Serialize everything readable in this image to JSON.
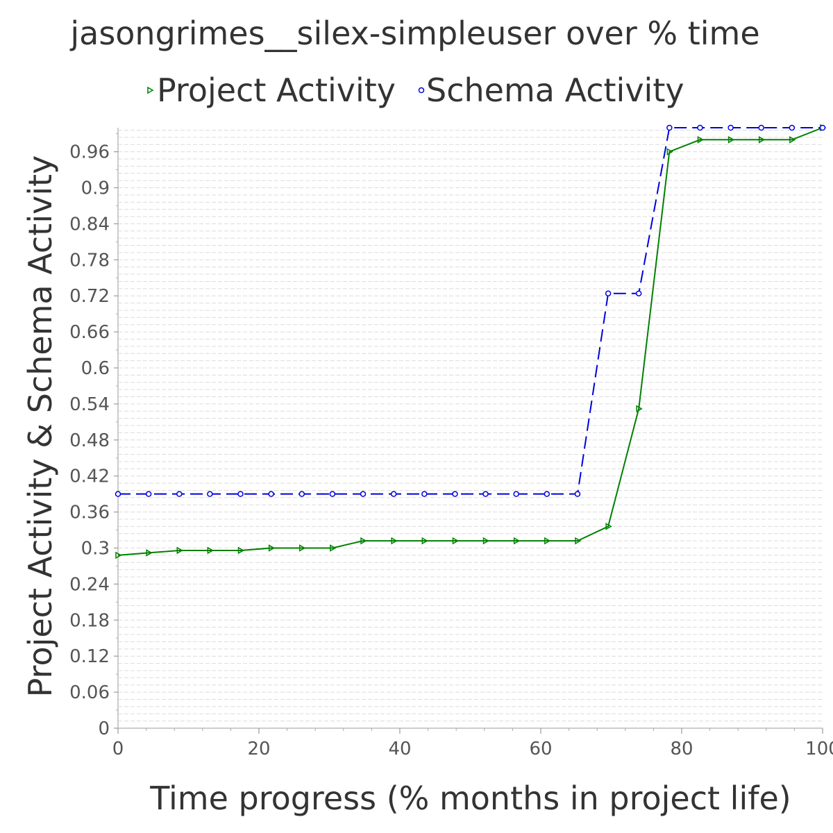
{
  "chart_data": {
    "type": "line",
    "title": "jasongrimes__silex-simpleuser over % time",
    "xlabel": "Time progress (% months in project life)",
    "ylabel": "Project Activity & Schema Activity",
    "xlim": [
      0,
      100
    ],
    "ylim": [
      0,
      1.0
    ],
    "xticks": [
      "0",
      "20",
      "40",
      "60",
      "80",
      "100"
    ],
    "yticks": [
      "0",
      "0.06",
      "0.12",
      "0.18",
      "0.24",
      "0.3",
      "0.36",
      "0.42",
      "0.48",
      "0.54",
      "0.6",
      "0.66",
      "0.72",
      "0.78",
      "0.84",
      "0.9",
      "0.96"
    ],
    "legend_position": "top",
    "grid": true,
    "series": [
      {
        "name": "Project Activity",
        "color": "#008000",
        "marker": "triangle-right",
        "dash": "solid",
        "x": [
          0,
          4.35,
          8.7,
          13.04,
          17.39,
          21.74,
          26.09,
          30.43,
          34.78,
          39.13,
          43.48,
          47.83,
          52.17,
          56.52,
          60.87,
          65.22,
          69.57,
          73.91,
          78.26,
          82.61,
          86.96,
          91.3,
          95.65,
          100
        ],
        "values": [
          0.288,
          0.292,
          0.296,
          0.296,
          0.296,
          0.3,
          0.3,
          0.3,
          0.312,
          0.312,
          0.312,
          0.312,
          0.312,
          0.312,
          0.312,
          0.312,
          0.336,
          0.532,
          0.96,
          0.98,
          0.98,
          0.98,
          0.98,
          1.0
        ]
      },
      {
        "name": "Schema Activity",
        "color": "#0000dd",
        "marker": "circle",
        "dash": "dashed",
        "x": [
          0,
          4.35,
          8.7,
          13.04,
          17.39,
          21.74,
          26.09,
          30.43,
          34.78,
          39.13,
          43.48,
          47.83,
          52.17,
          56.52,
          60.87,
          65.22,
          69.57,
          73.91,
          78.26,
          82.61,
          86.96,
          91.3,
          95.65,
          100
        ],
        "values": [
          0.39,
          0.39,
          0.39,
          0.39,
          0.39,
          0.39,
          0.39,
          0.39,
          0.39,
          0.39,
          0.39,
          0.39,
          0.39,
          0.39,
          0.39,
          0.39,
          0.724,
          0.724,
          1.0,
          1.0,
          1.0,
          1.0,
          1.0,
          1.0
        ]
      }
    ]
  }
}
